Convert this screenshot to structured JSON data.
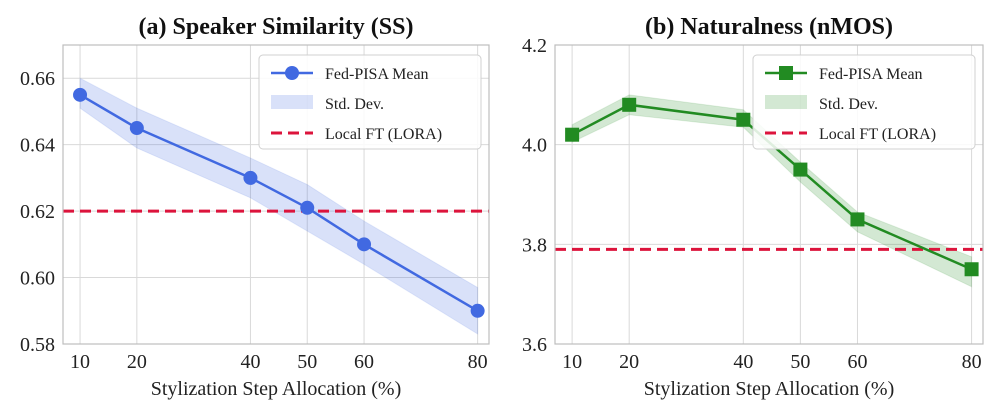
{
  "chart_data": [
    {
      "type": "line",
      "title": "(a) Speaker Similarity (SS)",
      "xlabel": "Stylization Step Allocation (%)",
      "ylabel": "",
      "x": [
        10,
        20,
        40,
        50,
        60,
        80
      ],
      "xlim": [
        7,
        82
      ],
      "ylim": [
        0.58,
        0.67
      ],
      "yticks": [
        0.58,
        0.6,
        0.62,
        0.64,
        0.66
      ],
      "ytick_labels": [
        "0.58",
        "0.60",
        "0.62",
        "0.64",
        "0.66"
      ],
      "series": [
        {
          "name": "Fed-PISA Mean",
          "values": [
            0.655,
            0.645,
            0.63,
            0.621,
            0.61,
            0.59
          ],
          "color": "#4169e1",
          "marker": "circle"
        }
      ],
      "band": {
        "name": "Std. Dev.",
        "lower": [
          0.651,
          0.639,
          0.624,
          0.614,
          0.604,
          0.583
        ],
        "upper": [
          0.66,
          0.651,
          0.636,
          0.628,
          0.617,
          0.597
        ],
        "color": "#4169e1"
      },
      "reference": {
        "name": "Local FT (LORA)",
        "value": 0.62,
        "color": "#dc143c"
      },
      "grid": true,
      "legend": "top-right"
    },
    {
      "type": "line",
      "title": "(b) Naturalness (nMOS)",
      "xlabel": "Stylization Step Allocation (%)",
      "ylabel": "",
      "x": [
        10,
        20,
        40,
        50,
        60,
        80
      ],
      "xlim": [
        7,
        82
      ],
      "ylim": [
        3.6,
        4.2
      ],
      "yticks": [
        3.6,
        3.8,
        4.0,
        4.2
      ],
      "ytick_labels": [
        "3.6",
        "3.8",
        "4.0",
        "4.2"
      ],
      "series": [
        {
          "name": "Fed-PISA Mean",
          "values": [
            4.02,
            4.08,
            4.05,
            3.95,
            3.85,
            3.75
          ],
          "color": "#228b22",
          "marker": "square"
        }
      ],
      "band": {
        "name": "Std. Dev.",
        "lower": [
          4.005,
          4.06,
          4.035,
          3.925,
          3.825,
          3.715
        ],
        "upper": [
          4.04,
          4.1,
          4.07,
          3.965,
          3.865,
          3.775
        ],
        "color": "#228b22"
      },
      "reference": {
        "name": "Local FT (LORA)",
        "value": 3.79,
        "color": "#dc143c"
      },
      "grid": true,
      "legend": "top-right"
    }
  ]
}
